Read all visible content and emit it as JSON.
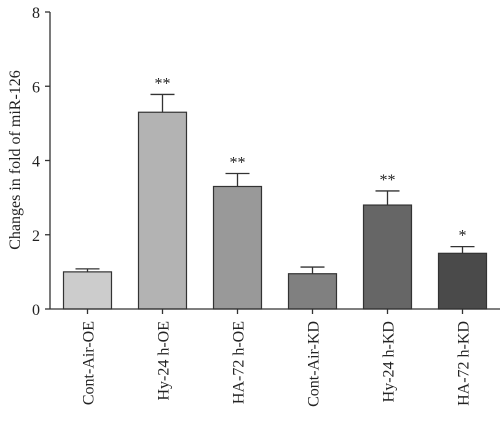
{
  "chart_data": {
    "type": "bar",
    "title": "",
    "xlabel": "",
    "ylabel": "Changes in fold of miR-126",
    "ylim": [
      0,
      8
    ],
    "yticks": [
      "0",
      "2",
      "4",
      "6",
      "8"
    ],
    "ytick_values": [
      0,
      2,
      4,
      6,
      8
    ],
    "grid": false,
    "categories": [
      "Cont-Air-OE",
      "Hy-24 h-OE",
      "HA-72 h-OE",
      "Cont-Air-KD",
      "Hy-24 h-KD",
      "HA-72 h-KD"
    ],
    "values": [
      1.0,
      5.3,
      3.3,
      0.95,
      2.8,
      1.5
    ],
    "errors": [
      0.08,
      0.48,
      0.35,
      0.18,
      0.38,
      0.18
    ],
    "significance": [
      "",
      "**",
      "**",
      "",
      "**",
      "*"
    ],
    "colors": [
      "#cccccc",
      "#b3b3b3",
      "#999999",
      "#808080",
      "#666666",
      "#4a4a4a"
    ]
  }
}
